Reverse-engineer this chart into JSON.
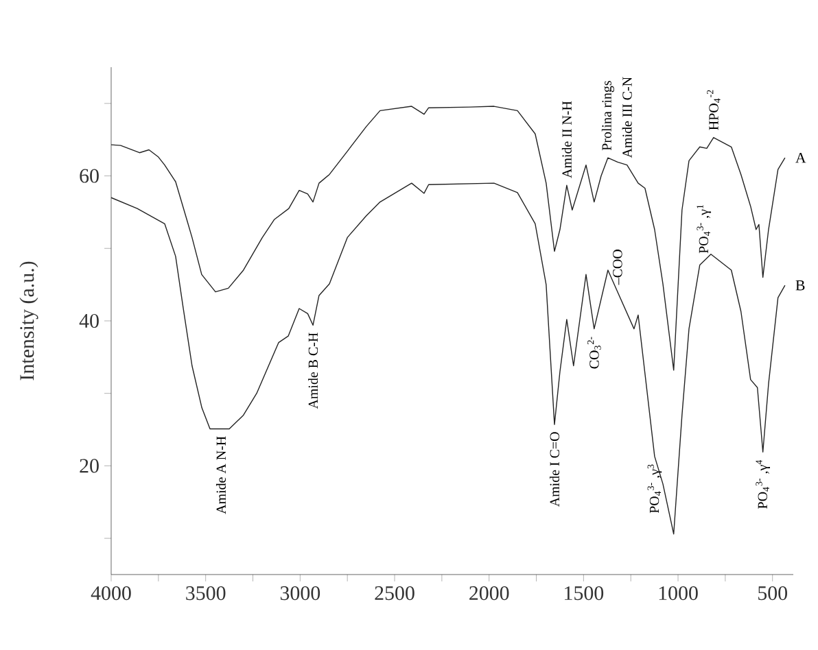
{
  "chart_data": {
    "type": "line",
    "ylabel": "Intensity (a.u.)",
    "xlim": [
      4000,
      390
    ],
    "ylim": [
      5,
      75
    ],
    "xticks": [
      4000,
      {
        "value": 3750,
        "label": null
      },
      3500,
      {
        "value": 3250,
        "label": null
      },
      3000,
      {
        "value": 2750,
        "label": null
      },
      2500,
      {
        "value": 2250,
        "label": null
      },
      2000,
      {
        "value": 1750,
        "label": null
      },
      1500,
      {
        "value": 1250,
        "label": null
      },
      1000,
      {
        "value": 750,
        "label": null
      },
      500
    ],
    "yticks": [
      {
        "value": 10,
        "label": null
      },
      20,
      {
        "value": 30,
        "label": null
      },
      40,
      {
        "value": 50,
        "label": null
      },
      60,
      {
        "value": 70,
        "label": null
      }
    ],
    "grid": false,
    "legend": false,
    "line_style": "solid",
    "series": [
      {
        "name": "A",
        "color": "#222222",
        "x": [
          4000,
          3950,
          3850,
          3800,
          3750,
          3717,
          3659,
          3600,
          3572,
          3521,
          3448,
          3380,
          3300,
          3200,
          3136,
          3060,
          3005,
          2960,
          2932,
          2900,
          2845,
          2750,
          2650,
          2577,
          2410,
          2344,
          2320,
          2100,
          1974,
          1850,
          1756,
          1698,
          1654,
          1625,
          1589,
          1560,
          1487,
          1444,
          1407,
          1371,
          1320,
          1270,
          1211,
          1175,
          1124,
          1080,
          1023,
          979,
          942,
          885,
          848,
          812,
          718,
          667,
          616,
          587,
          572,
          551,
          521,
          471,
          434
        ],
        "values": [
          64.3,
          64.2,
          63.2,
          63.6,
          62.6,
          61.5,
          59.2,
          54,
          51.5,
          46.4,
          44,
          44.5,
          47,
          51.5,
          54,
          55.5,
          58,
          57.5,
          56.4,
          59,
          60.2,
          63.4,
          66.8,
          69,
          69.6,
          68.5,
          69.4,
          69.5,
          69.6,
          69,
          65.8,
          59,
          49.6,
          52.6,
          58.7,
          55.3,
          61.5,
          56.4,
          60,
          62.5,
          61.9,
          61.5,
          59,
          58.3,
          52.6,
          45.1,
          33.2,
          55.3,
          62.1,
          64,
          63.8,
          65.3,
          64,
          60.2,
          55.8,
          52.6,
          53.3,
          46,
          52.6,
          60.9,
          62.5
        ]
      },
      {
        "name": "B",
        "color": "#222222",
        "x": [
          4000,
          3862,
          3717,
          3659,
          3620,
          3572,
          3520,
          3477,
          3375,
          3300,
          3230,
          3114,
          3063,
          3005,
          2960,
          2932,
          2900,
          2845,
          2750,
          2650,
          2577,
          2410,
          2344,
          2320,
          1974,
          1850,
          1756,
          1698,
          1654,
          1625,
          1589,
          1553,
          1487,
          1444,
          1371,
          1320,
          1233,
          1211,
          1124,
          1080,
          1023,
          979,
          942,
          885,
          826,
          718,
          667,
          616,
          580,
          551,
          521,
          471,
          434
        ],
        "values": [
          57,
          55.5,
          53.4,
          48.9,
          42,
          33.8,
          28,
          25.1,
          25.1,
          27,
          30,
          37,
          37.9,
          41.7,
          41,
          39.4,
          43.5,
          45.1,
          51.5,
          54.5,
          56.4,
          59,
          57.6,
          58.8,
          59,
          57.7,
          53.4,
          45,
          25.7,
          33,
          40.2,
          33.8,
          46.4,
          38.9,
          47,
          44,
          38.9,
          40.8,
          21.3,
          17.5,
          10.6,
          27,
          38.9,
          47.7,
          49.2,
          47,
          41.3,
          31.9,
          30.8,
          21.9,
          31.3,
          43.2,
          44.9
        ]
      }
    ],
    "annotations": [
      {
        "text": "Amide A N-H",
        "x": 3419,
        "y": 25.1
      },
      {
        "text": "Amide B C-H",
        "x": 2932,
        "y": 39.4
      },
      {
        "text": "Amide I C=O",
        "x": 1654,
        "y": 25.7
      },
      {
        "text": "CO$_{3}$$^{2-}$",
        "x": 1444,
        "y": 38.9
      },
      {
        "text": "–COO",
        "x": 1320,
        "y": 44
      },
      {
        "text": "PO$_{4}$$^{3-}$ ,γ$^{3}$",
        "x": 1124,
        "y": 21.3
      },
      {
        "text": "PO$_{4}$$^{3-}$ ,γ$^{1}$",
        "x": 863,
        "y": 48.3
      },
      {
        "text": "PO$_{4}$$^{3-}$ ,γ$^{4}$",
        "x": 551,
        "y": 21.9
      },
      {
        "text": "Amide II N-H",
        "x": 1589,
        "y": 58.7
      },
      {
        "text": "Prolina rings",
        "x": 1371,
        "y": 62.5
      },
      {
        "text": "Amide III C-N",
        "x": 1270,
        "y": 61.5
      },
      {
        "text": "HPO$_{4}$$^{-2}$",
        "x": 812,
        "y": 65.3
      }
    ]
  }
}
